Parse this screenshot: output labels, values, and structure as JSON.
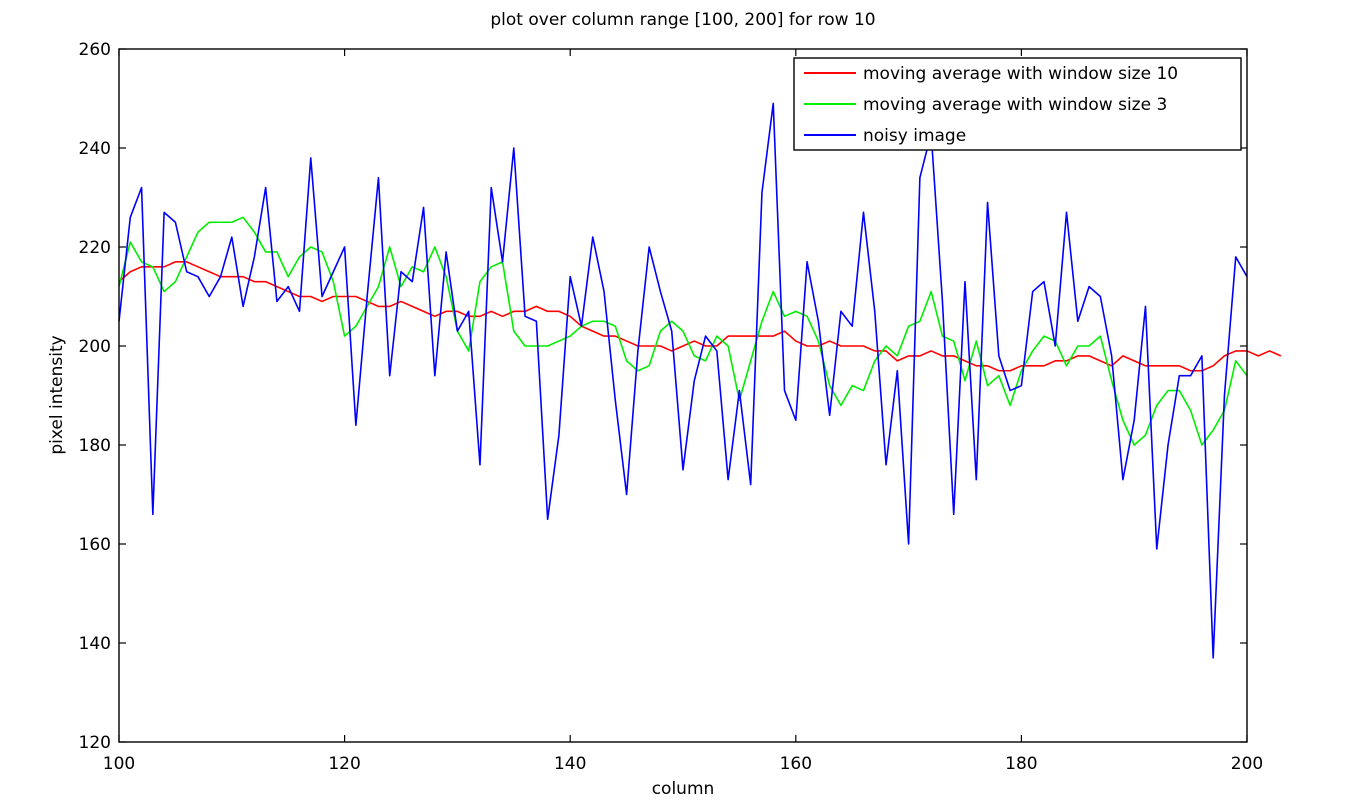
{
  "chart_data": {
    "type": "line",
    "title": "plot over column range [100, 200] for row 10",
    "xlabel": "column",
    "ylabel": "pixel intensity",
    "xlim": [
      100,
      200
    ],
    "ylim": [
      120,
      260
    ],
    "xticks": [
      100,
      120,
      140,
      160,
      180,
      200
    ],
    "yticks": [
      120,
      140,
      160,
      180,
      200,
      220,
      240,
      260
    ],
    "grid": false,
    "legend_position": "top-right",
    "x_start": 100,
    "series": [
      {
        "name": "moving average with window size 10",
        "color": "#ff0000",
        "values": [
          213,
          215,
          216,
          216,
          216,
          217,
          217,
          216,
          215,
          214,
          214,
          214,
          213,
          213,
          212,
          211,
          210,
          210,
          209,
          210,
          210,
          210,
          209,
          208,
          208,
          209,
          208,
          207,
          206,
          207,
          207,
          206,
          206,
          207,
          206,
          207,
          207,
          208,
          207,
          207,
          206,
          204,
          203,
          202,
          202,
          201,
          200,
          200,
          200,
          199,
          200,
          201,
          200,
          200,
          202,
          202,
          202,
          202,
          202,
          203,
          201,
          200,
          200,
          201,
          200,
          200,
          200,
          199,
          199,
          197,
          198,
          198,
          199,
          198,
          198,
          197,
          196,
          196,
          195,
          195,
          196,
          196,
          196,
          197,
          197,
          198,
          198,
          197,
          196,
          198,
          197,
          196,
          196,
          196,
          196,
          195,
          195,
          196,
          198,
          199,
          199,
          198,
          199,
          198
        ]
      },
      {
        "name": "moving average with window size 3",
        "color": "#00ee00",
        "values": [
          212,
          221,
          217,
          216,
          211,
          213,
          218,
          223,
          225,
          225,
          225,
          226,
          223,
          219,
          219,
          214,
          218,
          220,
          219,
          213,
          202,
          204,
          208,
          212,
          220,
          212,
          216,
          215,
          220,
          214,
          203,
          199,
          213,
          216,
          217,
          203,
          200,
          200,
          200,
          201,
          202,
          204,
          205,
          205,
          204,
          197,
          195,
          196,
          203,
          205,
          203,
          198,
          197,
          202,
          200,
          189,
          197,
          205,
          211,
          206,
          207,
          206,
          201,
          192,
          188,
          192,
          191,
          197,
          200,
          198,
          204,
          205,
          211,
          202,
          201,
          193,
          201,
          192,
          194,
          188,
          195,
          199,
          202,
          201,
          196,
          200,
          200,
          202,
          193,
          185,
          180,
          182,
          188,
          191,
          191,
          187,
          180,
          183,
          187,
          197,
          194
        ]
      },
      {
        "name": "noisy image",
        "color": "#0000ff",
        "values": [
          205,
          226,
          232,
          166,
          227,
          225,
          215,
          214,
          210,
          214,
          222,
          208,
          218,
          232,
          209,
          212,
          207,
          238,
          210,
          215,
          220,
          184,
          210,
          234,
          194,
          215,
          213,
          228,
          194,
          219,
          203,
          207,
          176,
          232,
          217,
          240,
          206,
          205,
          165,
          182,
          214,
          204,
          222,
          211,
          189,
          170,
          199,
          220,
          211,
          203,
          175,
          193,
          202,
          199,
          173,
          191,
          172,
          231,
          249,
          191,
          185,
          217,
          205,
          186,
          207,
          204,
          227,
          207,
          176,
          195,
          160,
          234,
          243,
          209,
          166,
          213,
          173,
          229,
          198,
          191,
          192,
          211,
          213,
          200,
          227,
          205,
          212,
          210,
          198,
          173,
          185,
          208,
          159,
          180,
          194,
          194,
          198,
          137,
          190,
          218,
          214
        ]
      }
    ]
  }
}
